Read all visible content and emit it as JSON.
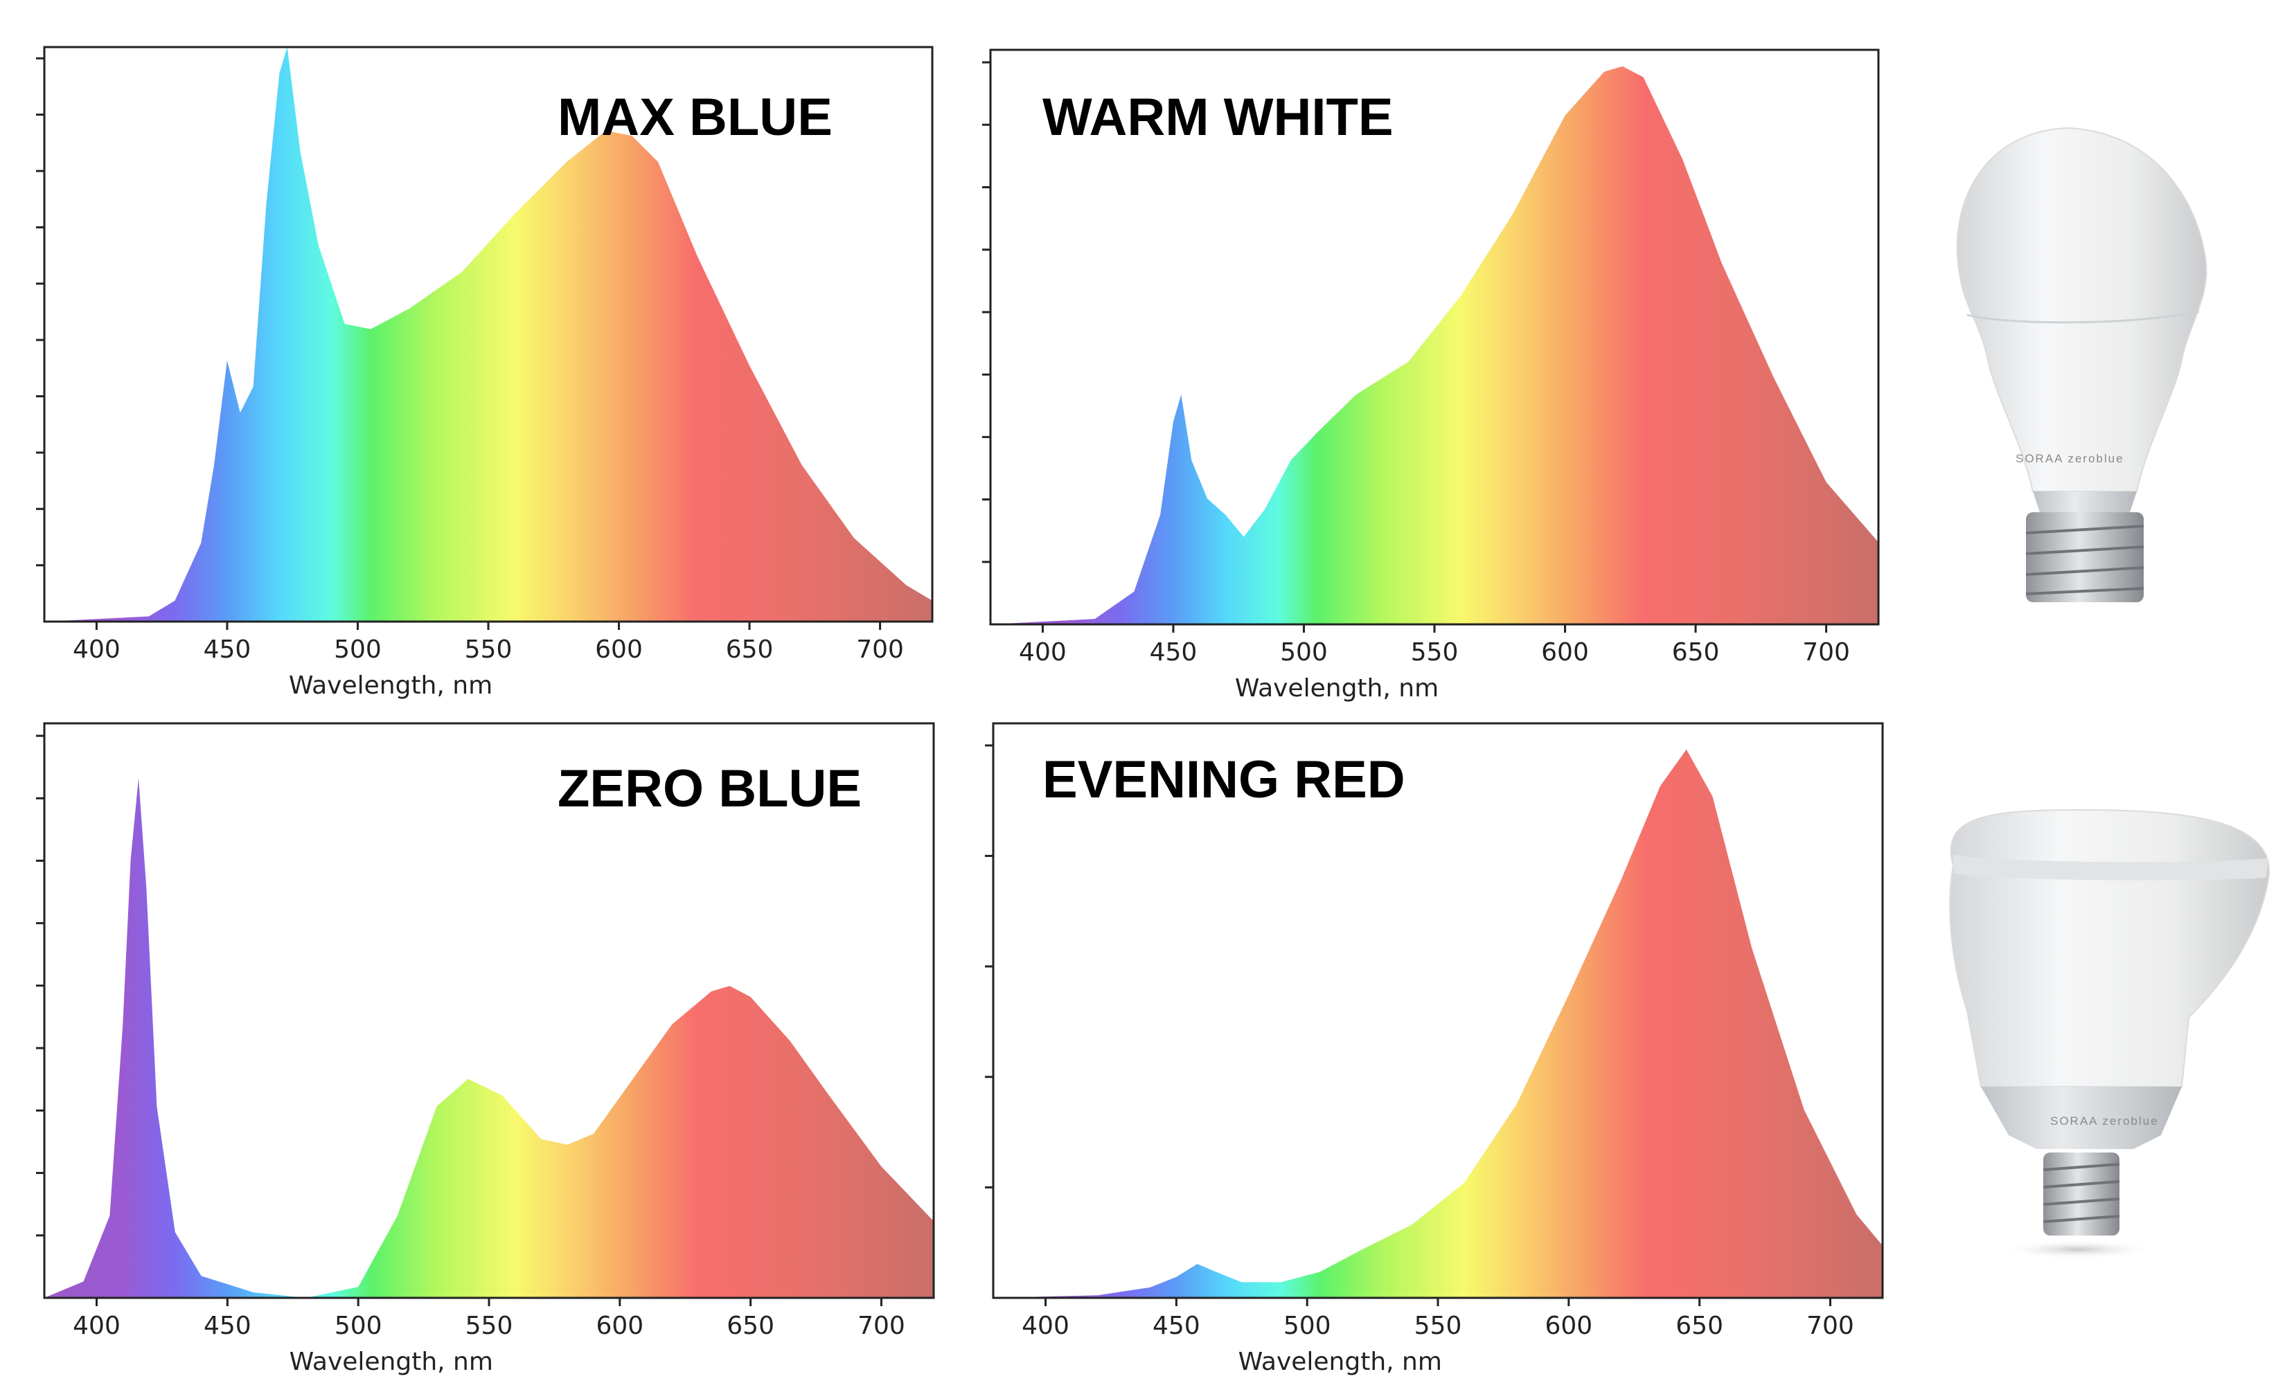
{
  "chart_data": [
    {
      "type": "area",
      "title": "MAX BLUE",
      "xlabel": "Wavelength, nm",
      "ylabel": "",
      "xlim": [
        380,
        720
      ],
      "ylim": [
        0,
        1.1
      ],
      "x_ticks": [
        "400",
        "450",
        "500",
        "550",
        "600",
        "650",
        "700"
      ],
      "y_ticks_labeled": false,
      "fill": "visible-spectrum gradient",
      "x": [
        380,
        420,
        430,
        440,
        445,
        450,
        455,
        460,
        465,
        470,
        473,
        478,
        485,
        495,
        505,
        520,
        540,
        560,
        580,
        595,
        605,
        615,
        630,
        650,
        670,
        690,
        710,
        720
      ],
      "y": [
        0.0,
        0.01,
        0.04,
        0.15,
        0.3,
        0.5,
        0.4,
        0.45,
        0.8,
        1.05,
        1.1,
        0.9,
        0.72,
        0.57,
        0.56,
        0.6,
        0.67,
        0.78,
        0.88,
        0.94,
        0.93,
        0.88,
        0.7,
        0.49,
        0.3,
        0.16,
        0.07,
        0.04
      ]
    },
    {
      "type": "area",
      "title": "WARM WHITE",
      "xlabel": "Wavelength, nm",
      "ylabel": "",
      "xlim": [
        380,
        720
      ],
      "ylim": [
        0,
        1.05
      ],
      "x_ticks": [
        "400",
        "450",
        "500",
        "550",
        "600",
        "650",
        "700"
      ],
      "y_ticks_labeled": false,
      "fill": "visible-spectrum gradient",
      "x": [
        380,
        420,
        435,
        445,
        450,
        453,
        457,
        463,
        470,
        477,
        485,
        495,
        505,
        520,
        540,
        560,
        580,
        600,
        615,
        622,
        630,
        645,
        660,
        680,
        700,
        720
      ],
      "y": [
        0.0,
        0.01,
        0.06,
        0.2,
        0.37,
        0.42,
        0.3,
        0.23,
        0.2,
        0.16,
        0.21,
        0.3,
        0.35,
        0.42,
        0.48,
        0.6,
        0.75,
        0.93,
        1.01,
        1.02,
        1.0,
        0.85,
        0.66,
        0.45,
        0.26,
        0.15
      ]
    },
    {
      "type": "area",
      "title": "ZERO BLUE",
      "xlabel": "Wavelength, nm",
      "ylabel": "",
      "xlim": [
        380,
        720
      ],
      "ylim": [
        0,
        1.05
      ],
      "x_ticks": [
        "400",
        "450",
        "500",
        "550",
        "600",
        "650",
        "700"
      ],
      "y_ticks_labeled": false,
      "fill": "visible-spectrum gradient",
      "x": [
        380,
        395,
        405,
        410,
        413,
        416,
        419,
        423,
        430,
        440,
        460,
        480,
        500,
        515,
        530,
        542,
        555,
        570,
        580,
        590,
        605,
        620,
        635,
        642,
        650,
        665,
        680,
        700,
        720
      ],
      "y": [
        0.0,
        0.03,
        0.15,
        0.5,
        0.8,
        0.95,
        0.75,
        0.35,
        0.12,
        0.04,
        0.01,
        0.0,
        0.02,
        0.15,
        0.35,
        0.4,
        0.37,
        0.29,
        0.28,
        0.3,
        0.4,
        0.5,
        0.56,
        0.57,
        0.55,
        0.47,
        0.37,
        0.24,
        0.14
      ]
    },
    {
      "type": "area",
      "title": "EVENING RED",
      "xlabel": "Wavelength, nm",
      "ylabel": "",
      "xlim": [
        380,
        720
      ],
      "ylim": [
        0,
        1.1
      ],
      "x_ticks": [
        "400",
        "450",
        "500",
        "550",
        "600",
        "650",
        "700"
      ],
      "y_ticks_labeled": false,
      "fill": "visible-spectrum gradient",
      "x": [
        380,
        420,
        440,
        450,
        458,
        465,
        475,
        490,
        505,
        520,
        540,
        560,
        580,
        600,
        620,
        635,
        645,
        655,
        670,
        690,
        710,
        720
      ],
      "y": [
        0.0,
        0.005,
        0.02,
        0.04,
        0.065,
        0.05,
        0.03,
        0.03,
        0.05,
        0.09,
        0.14,
        0.22,
        0.37,
        0.58,
        0.8,
        0.98,
        1.05,
        0.96,
        0.67,
        0.36,
        0.16,
        0.1
      ]
    }
  ],
  "products": [
    {
      "name": "a19-bulb",
      "brand": "SORAA",
      "sub_brand": "zeroblue"
    },
    {
      "name": "br30-bulb",
      "brand": "SORAA",
      "sub_brand": "zeroblue"
    }
  ]
}
